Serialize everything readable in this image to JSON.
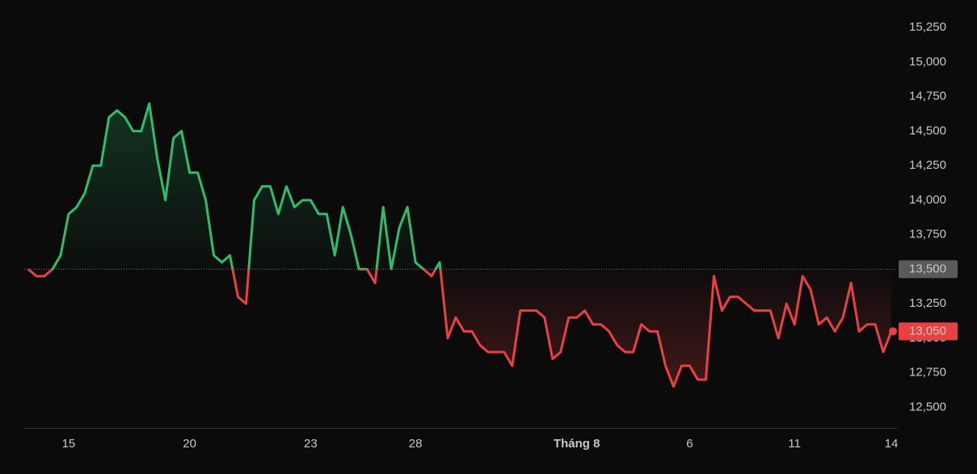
{
  "chart_data": {
    "type": "baseline-line",
    "categories": [
      null,
      null,
      null,
      null,
      null,
      "15",
      null,
      null,
      null,
      null,
      null,
      null,
      null,
      null,
      null,
      null,
      null,
      null,
      null,
      null,
      "20",
      null,
      null,
      null,
      null,
      null,
      null,
      null,
      null,
      null,
      null,
      null,
      null,
      null,
      null,
      "23",
      null,
      null,
      null,
      null,
      null,
      null,
      null,
      null,
      null,
      null,
      null,
      null,
      "28",
      null,
      null,
      null,
      null,
      null,
      null,
      null,
      null,
      null,
      null,
      null,
      null,
      null,
      null,
      null,
      null,
      null,
      null,
      null,
      "Tháng 8",
      null,
      null,
      null,
      null,
      null,
      null,
      null,
      null,
      null,
      null,
      null,
      null,
      null,
      "6",
      null,
      null,
      null,
      null,
      null,
      null,
      null,
      null,
      null,
      null,
      null,
      null,
      "11",
      null,
      null,
      null,
      null,
      null,
      null,
      null,
      null,
      null,
      null,
      null,
      "14"
    ],
    "values": [
      13500,
      13450,
      13450,
      13500,
      13600,
      13900,
      13950,
      14050,
      14250,
      14250,
      14600,
      14650,
      14600,
      14500,
      14500,
      14700,
      14300,
      14000,
      14450,
      14500,
      14200,
      14200,
      14000,
      13600,
      13550,
      13600,
      13300,
      13250,
      14000,
      14100,
      14100,
      13900,
      14100,
      13950,
      14000,
      14000,
      13900,
      13900,
      13600,
      13950,
      13750,
      13500,
      13500,
      13400,
      13950,
      13500,
      13800,
      13950,
      13550,
      13500,
      13450,
      13550,
      13000,
      13150,
      13050,
      13050,
      12950,
      12900,
      12900,
      12900,
      12800,
      13200,
      13200,
      13200,
      13150,
      12850,
      12900,
      13150,
      13150,
      13200,
      13100,
      13100,
      13050,
      12950,
      12900,
      12900,
      13100,
      13050,
      13050,
      12800,
      12650,
      12800,
      12800,
      12700,
      12700,
      13450,
      13200,
      13300,
      13300,
      13250,
      13200,
      13200,
      13200,
      13000,
      13250,
      13100,
      13450,
      13350,
      13100,
      13150,
      13050,
      13150,
      13400,
      13050,
      13100,
      13100,
      12900,
      13050
    ],
    "up_color": "#2ebd6b",
    "down_color": "#e84142",
    "baseline": {
      "value": 13500,
      "label": "13,500"
    },
    "current_price": {
      "value": 13050,
      "label": "13,050"
    },
    "ylim": [
      12350,
      15450
    ],
    "yticks": [
      {
        "value": 12500,
        "label": "12,500"
      },
      {
        "value": 12750,
        "label": "12,750"
      },
      {
        "value": 13000,
        "label": "13,000"
      },
      {
        "value": 13250,
        "label": "13,250"
      },
      {
        "value": 13500,
        "label": "13,500"
      },
      {
        "value": 13750,
        "label": "13,750"
      },
      {
        "value": 14000,
        "label": "14,000"
      },
      {
        "value": 14250,
        "label": "14,250"
      },
      {
        "value": 14500,
        "label": "14,500"
      },
      {
        "value": 14750,
        "label": "14,750"
      },
      {
        "value": 15000,
        "label": "15,000"
      },
      {
        "value": 15250,
        "label": "15,250"
      }
    ]
  }
}
